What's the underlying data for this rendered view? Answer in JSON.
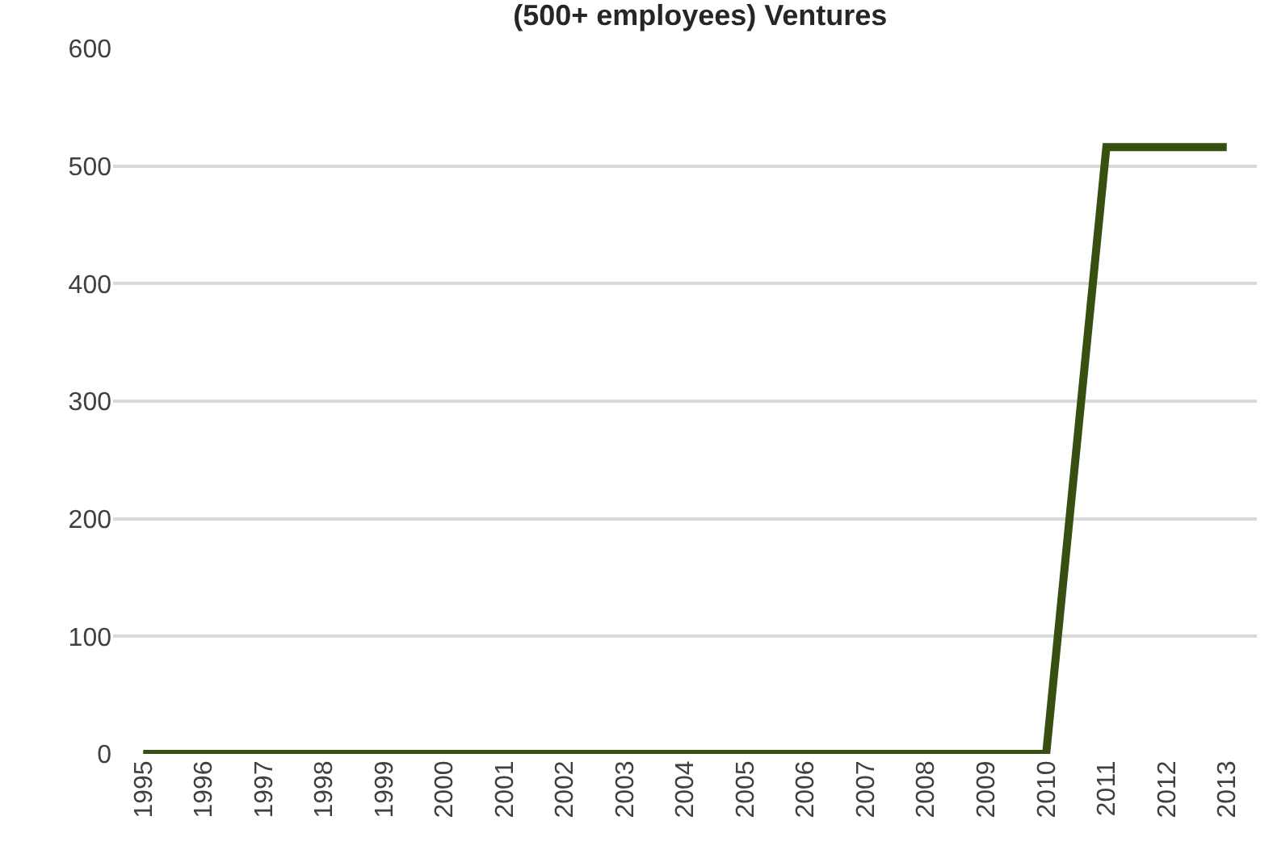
{
  "chart_data": {
    "type": "line",
    "title": "(500+ employees) Ventures",
    "categories": [
      "1995",
      "1996",
      "1997",
      "1998",
      "1999",
      "2000",
      "2001",
      "2002",
      "2003",
      "2004",
      "2005",
      "2006",
      "2007",
      "2008",
      "2009",
      "2010",
      "2011",
      "2012",
      "2013"
    ],
    "series": [
      {
        "color": "#375011",
        "values": [
          0,
          0,
          0,
          0,
          0,
          0,
          0,
          0,
          0,
          0,
          0,
          0,
          0,
          0,
          0,
          0,
          516,
          516,
          516
        ]
      }
    ],
    "ylim": [
      0,
      600
    ],
    "yticks": [
      0,
      100,
      200,
      300,
      400,
      500,
      600
    ],
    "grid": "y",
    "marker": "none",
    "line_style": "solid"
  }
}
